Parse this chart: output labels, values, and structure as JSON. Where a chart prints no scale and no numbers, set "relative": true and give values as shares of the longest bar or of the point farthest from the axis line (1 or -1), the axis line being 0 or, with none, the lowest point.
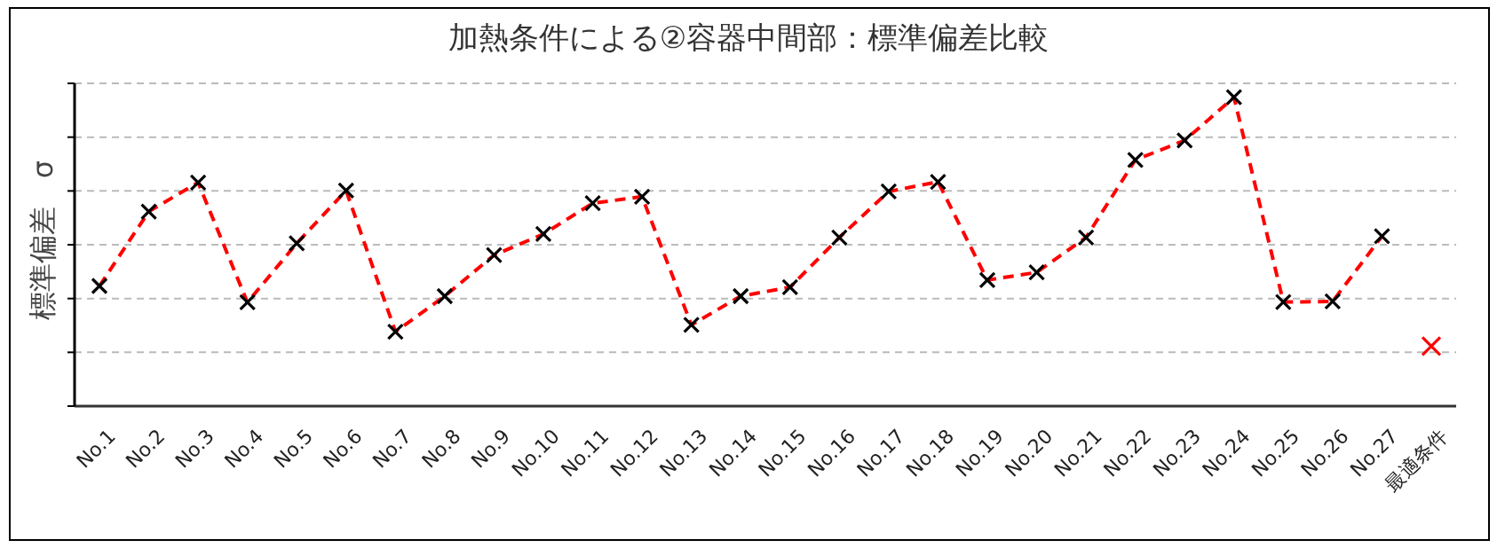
{
  "chart_data": {
    "type": "line",
    "title": "加熱条件による②容器中間部：標準偏差比較",
    "ylabel": "標準偏差　σ",
    "relative": true,
    "grid": "y",
    "legend": false,
    "marker": "cross",
    "line_style": "dashed",
    "categories": [
      "No.1",
      "No.2",
      "No.3",
      "No.4",
      "No.5",
      "No.6",
      "No.7",
      "No.8",
      "No.9",
      "No.10",
      "No.11",
      "No.12",
      "No.13",
      "No.14",
      "No.15",
      "No.16",
      "No.17",
      "No.18",
      "No.19",
      "No.20",
      "No.21",
      "No.22",
      "No.23",
      "No.24",
      "No.25",
      "No.26",
      "No.27",
      "最適条件"
    ],
    "series": [
      {
        "color": "#ff0000",
        "values": [
          0.389,
          0.63,
          0.724,
          0.336,
          0.527,
          0.698,
          0.241,
          0.356,
          0.489,
          0.557,
          0.657,
          0.678,
          0.263,
          0.356,
          0.385,
          0.546,
          0.695,
          0.726,
          0.408,
          0.433,
          0.546,
          0.797,
          0.86,
          1,
          0.337,
          0.339,
          0.55,
          null
        ]
      },
      {
        "type": "scatter",
        "color": "#ff0000",
        "values": [
          null,
          null,
          null,
          null,
          null,
          null,
          null,
          null,
          null,
          null,
          null,
          null,
          null,
          null,
          null,
          null,
          null,
          null,
          null,
          null,
          null,
          null,
          null,
          null,
          null,
          null,
          null,
          0.194
        ]
      }
    ]
  }
}
